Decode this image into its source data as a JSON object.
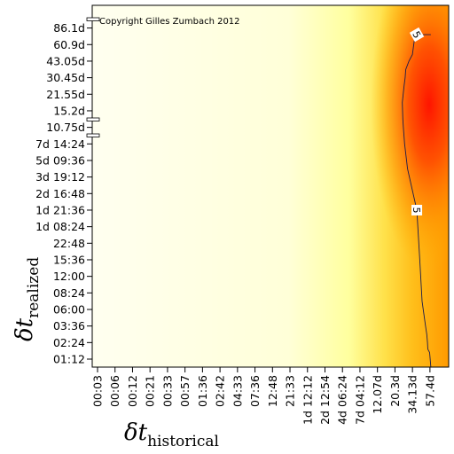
{
  "chart_data": {
    "type": "heatmap",
    "copyright": "Copyright Gilles Zumbach 2012",
    "xlabel": {
      "symbol": "δt",
      "subscript": "historical"
    },
    "ylabel": {
      "symbol": "δt",
      "subscript": "realized"
    },
    "x_ticks": [
      "00:03",
      "00:06",
      "00:12",
      "00:21",
      "00:33",
      "00:57",
      "01:36",
      "02:42",
      "04:33",
      "07:36",
      "12:48",
      "21:33",
      "1d 12:12",
      "2d 12:54",
      "4d 06:24",
      "7d 04:12",
      "12.07d",
      "20.3d",
      "34.13d",
      "57.4d"
    ],
    "y_ticks": [
      "01:12",
      "02:24",
      "03:36",
      "06:00",
      "08:24",
      "12:00",
      "15:36",
      "22:48",
      "1d 08:24",
      "1d 21:36",
      "2d 16:48",
      "3d 19:12",
      "5d 09:36",
      "7d 14:24",
      "10.75d",
      "15.2d",
      "21.55d",
      "30.45d",
      "43.05d",
      "60.9d",
      "86.1d"
    ],
    "contour": {
      "level_label": "5",
      "path_x": [
        19.05,
        18.98,
        18.88,
        18.86,
        18.82,
        18.75,
        18.55,
        18.42,
        18.25,
        17.72,
        17.55,
        17.48,
        17.45,
        17.42,
        17.52,
        17.58,
        17.62,
        17.8,
        18.0,
        18.1,
        18.25,
        18.65,
        19.05
      ],
      "path_y": [
        -0.5,
        0.4,
        0.6,
        1.0,
        1.5,
        2.0,
        3.5,
        6.0,
        9.0,
        11.5,
        13.0,
        14.0,
        14.5,
        15.5,
        16.5,
        17.0,
        17.5,
        18.0,
        18.4,
        19.2,
        19.5,
        19.6,
        19.6
      ]
    },
    "color_scale": [
      "#fffff0",
      "#ffff9a",
      "#ffd000",
      "#ff8800",
      "#ff1a00"
    ],
    "hotspot": {
      "x": 18.9,
      "y": 15.0
    }
  }
}
